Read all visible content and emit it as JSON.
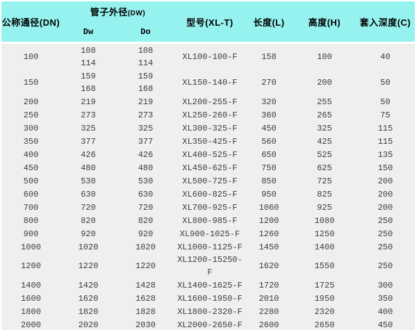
{
  "colors": {
    "header_bg": "#96f2ee",
    "row_bg": "#efefef",
    "body_text": "#3c3c3c",
    "header_text": "#000000",
    "page_bg": "#ffffff"
  },
  "table": {
    "header": {
      "nominal_diameter": "公称通径(DN)",
      "pipe_outer_diameter": "管子外径",
      "pipe_outer_diameter_suffix": "(DW)",
      "dw": "Dw",
      "do": "Do",
      "model": "型号(XL-T)",
      "length": "长度(L)",
      "height": "高度(H)",
      "insertion_depth": "套入深度(C)"
    },
    "columns_order": [
      "dn",
      "dw",
      "do",
      "model",
      "length",
      "height",
      "depth"
    ],
    "rows": [
      {
        "dn": "100",
        "dw": [
          "108",
          "114"
        ],
        "do": [
          "108",
          "114"
        ],
        "model": "XL100-100-F",
        "length": "158",
        "height": "100",
        "depth": "40"
      },
      {
        "dn": "150",
        "dw": [
          "159",
          "168"
        ],
        "do": [
          "159",
          "168"
        ],
        "model": "XL150-140-F",
        "length": "270",
        "height": "200",
        "depth": "50"
      },
      {
        "dn": "200",
        "dw": "219",
        "do": "219",
        "model": "XL200-255-F",
        "length": "320",
        "height": "255",
        "depth": "50"
      },
      {
        "dn": "250",
        "dw": "273",
        "do": "273",
        "model": "XL250-260-F",
        "length": "360",
        "height": "265",
        "depth": "75"
      },
      {
        "dn": "300",
        "dw": "325",
        "do": "325",
        "model": "XL300-325-F",
        "length": "450",
        "height": "325",
        "depth": "115"
      },
      {
        "dn": "350",
        "dw": "377",
        "do": "377",
        "model": "XL350-425-F",
        "length": "560",
        "height": "425",
        "depth": "115"
      },
      {
        "dn": "400",
        "dw": "426",
        "do": "426",
        "model": "XL400-525-F",
        "length": "650",
        "height": "525",
        "depth": "135"
      },
      {
        "dn": "450",
        "dw": "480",
        "do": "480",
        "model": "XL450-625-F",
        "length": "750",
        "height": "625",
        "depth": "150"
      },
      {
        "dn": "500",
        "dw": "530",
        "do": "530",
        "model": "XL500-725-F",
        "length": "850",
        "height": "725",
        "depth": "200"
      },
      {
        "dn": "600",
        "dw": "630",
        "do": "630",
        "model": "XL600-825-F",
        "length": "950",
        "height": "825",
        "depth": "200"
      },
      {
        "dn": "700",
        "dw": "720",
        "do": "720",
        "model": "XL700-925-F",
        "length": "1060",
        "height": "925",
        "depth": "200"
      },
      {
        "dn": "800",
        "dw": "820",
        "do": "820",
        "model": "XL800-985-F",
        "length": "1200",
        "height": "1080",
        "depth": "250"
      },
      {
        "dn": "900",
        "dw": "920",
        "do": "920",
        "model": "XL900-1025-F",
        "length": "1260",
        "height": "1250",
        "depth": "250"
      },
      {
        "dn": "1000",
        "dw": "1020",
        "do": "1020",
        "model": "XL1000-1125-F",
        "length": "1450",
        "height": "1400",
        "depth": "250"
      },
      {
        "dn": "1200",
        "dw": "1220",
        "do": "1220",
        "model": "XL1200-15250-F",
        "length": "1620",
        "height": "1550",
        "depth": "250"
      },
      {
        "dn": "1400",
        "dw": "1420",
        "do": "1428",
        "model": "XL1400-1625-F",
        "length": "1720",
        "height": "1725",
        "depth": "300"
      },
      {
        "dn": "1600",
        "dw": "1620",
        "do": "1628",
        "model": "XL1600-1950-F",
        "length": "2010",
        "height": "1950",
        "depth": "350"
      },
      {
        "dn": "1800",
        "dw": "1820",
        "do": "1828",
        "model": "XL1800-2320-F",
        "length": "2280",
        "height": "2320",
        "depth": "400"
      },
      {
        "dn": "2000",
        "dw": "2020",
        "do": "2030",
        "model": "XL2000-2650-F",
        "length": "2600",
        "height": "2650",
        "depth": "450"
      }
    ]
  }
}
